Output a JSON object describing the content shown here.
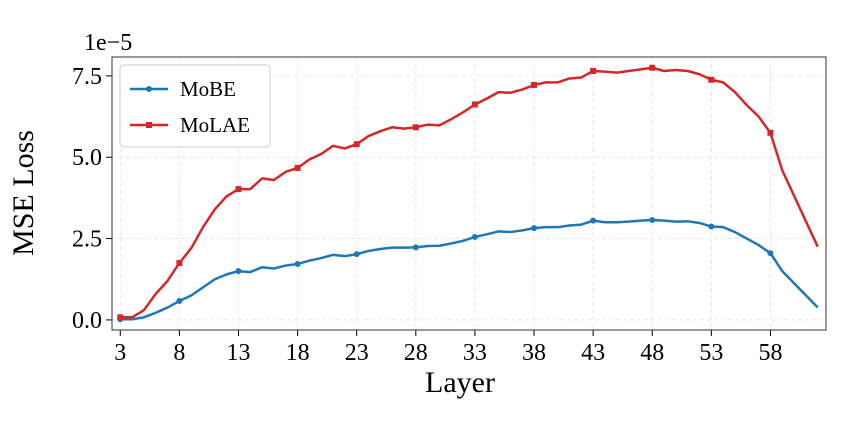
{
  "chart_data": {
    "type": "line",
    "offset_text": "1e−5",
    "x_label": "Layer",
    "y_label": "MSE Loss",
    "x": [
      3,
      4,
      5,
      6,
      7,
      8,
      9,
      10,
      11,
      12,
      13,
      14,
      15,
      16,
      17,
      18,
      19,
      20,
      21,
      22,
      23,
      24,
      25,
      26,
      27,
      28,
      29,
      30,
      31,
      32,
      33,
      34,
      35,
      36,
      37,
      38,
      39,
      40,
      41,
      42,
      43,
      44,
      45,
      46,
      47,
      48,
      49,
      50,
      51,
      52,
      53,
      54,
      55,
      56,
      57,
      58,
      59,
      62
    ],
    "series": [
      {
        "name": "MoBE",
        "color": "#1f77b4",
        "marker": "circle",
        "values": [
          0.02,
          0.02,
          0.08,
          0.22,
          0.38,
          0.58,
          0.75,
          1.0,
          1.25,
          1.4,
          1.5,
          1.47,
          1.62,
          1.58,
          1.67,
          1.72,
          1.82,
          1.9,
          2.0,
          1.96,
          2.02,
          2.12,
          2.18,
          2.22,
          2.22,
          2.23,
          2.27,
          2.28,
          2.35,
          2.43,
          2.55,
          2.63,
          2.72,
          2.7,
          2.75,
          2.82,
          2.85,
          2.85,
          2.9,
          2.93,
          3.05,
          3.0,
          3.0,
          3.02,
          3.05,
          3.07,
          3.05,
          3.02,
          3.03,
          2.98,
          2.87,
          2.85,
          2.7,
          2.5,
          2.3,
          2.05,
          1.5,
          0.38
        ]
      },
      {
        "name": "MoLAE",
        "color": "#d62728",
        "marker": "square",
        "values": [
          0.08,
          0.08,
          0.3,
          0.8,
          1.2,
          1.75,
          2.2,
          2.85,
          3.4,
          3.8,
          4.02,
          4.02,
          4.35,
          4.3,
          4.55,
          4.67,
          4.93,
          5.1,
          5.35,
          5.27,
          5.4,
          5.65,
          5.8,
          5.92,
          5.88,
          5.92,
          6.0,
          5.98,
          6.17,
          6.38,
          6.62,
          6.8,
          7.0,
          6.98,
          7.08,
          7.22,
          7.3,
          7.3,
          7.42,
          7.45,
          7.65,
          7.63,
          7.6,
          7.65,
          7.7,
          7.75,
          7.65,
          7.68,
          7.65,
          7.55,
          7.38,
          7.3,
          7.0,
          6.6,
          6.25,
          5.75,
          4.6,
          2.25
        ]
      }
    ],
    "markevery": 5,
    "xlim": [
      2.3,
      62.7
    ],
    "xticks": [
      3,
      8,
      13,
      18,
      23,
      28,
      33,
      38,
      43,
      48,
      53,
      58
    ],
    "ylim": [
      -0.31,
      8.08
    ],
    "yticks": [
      {
        "value": 0,
        "label": "0.0"
      },
      2.5,
      {
        "value": 5,
        "label": "5.0"
      },
      7.5
    ],
    "grid": true,
    "legend": "upper left"
  }
}
